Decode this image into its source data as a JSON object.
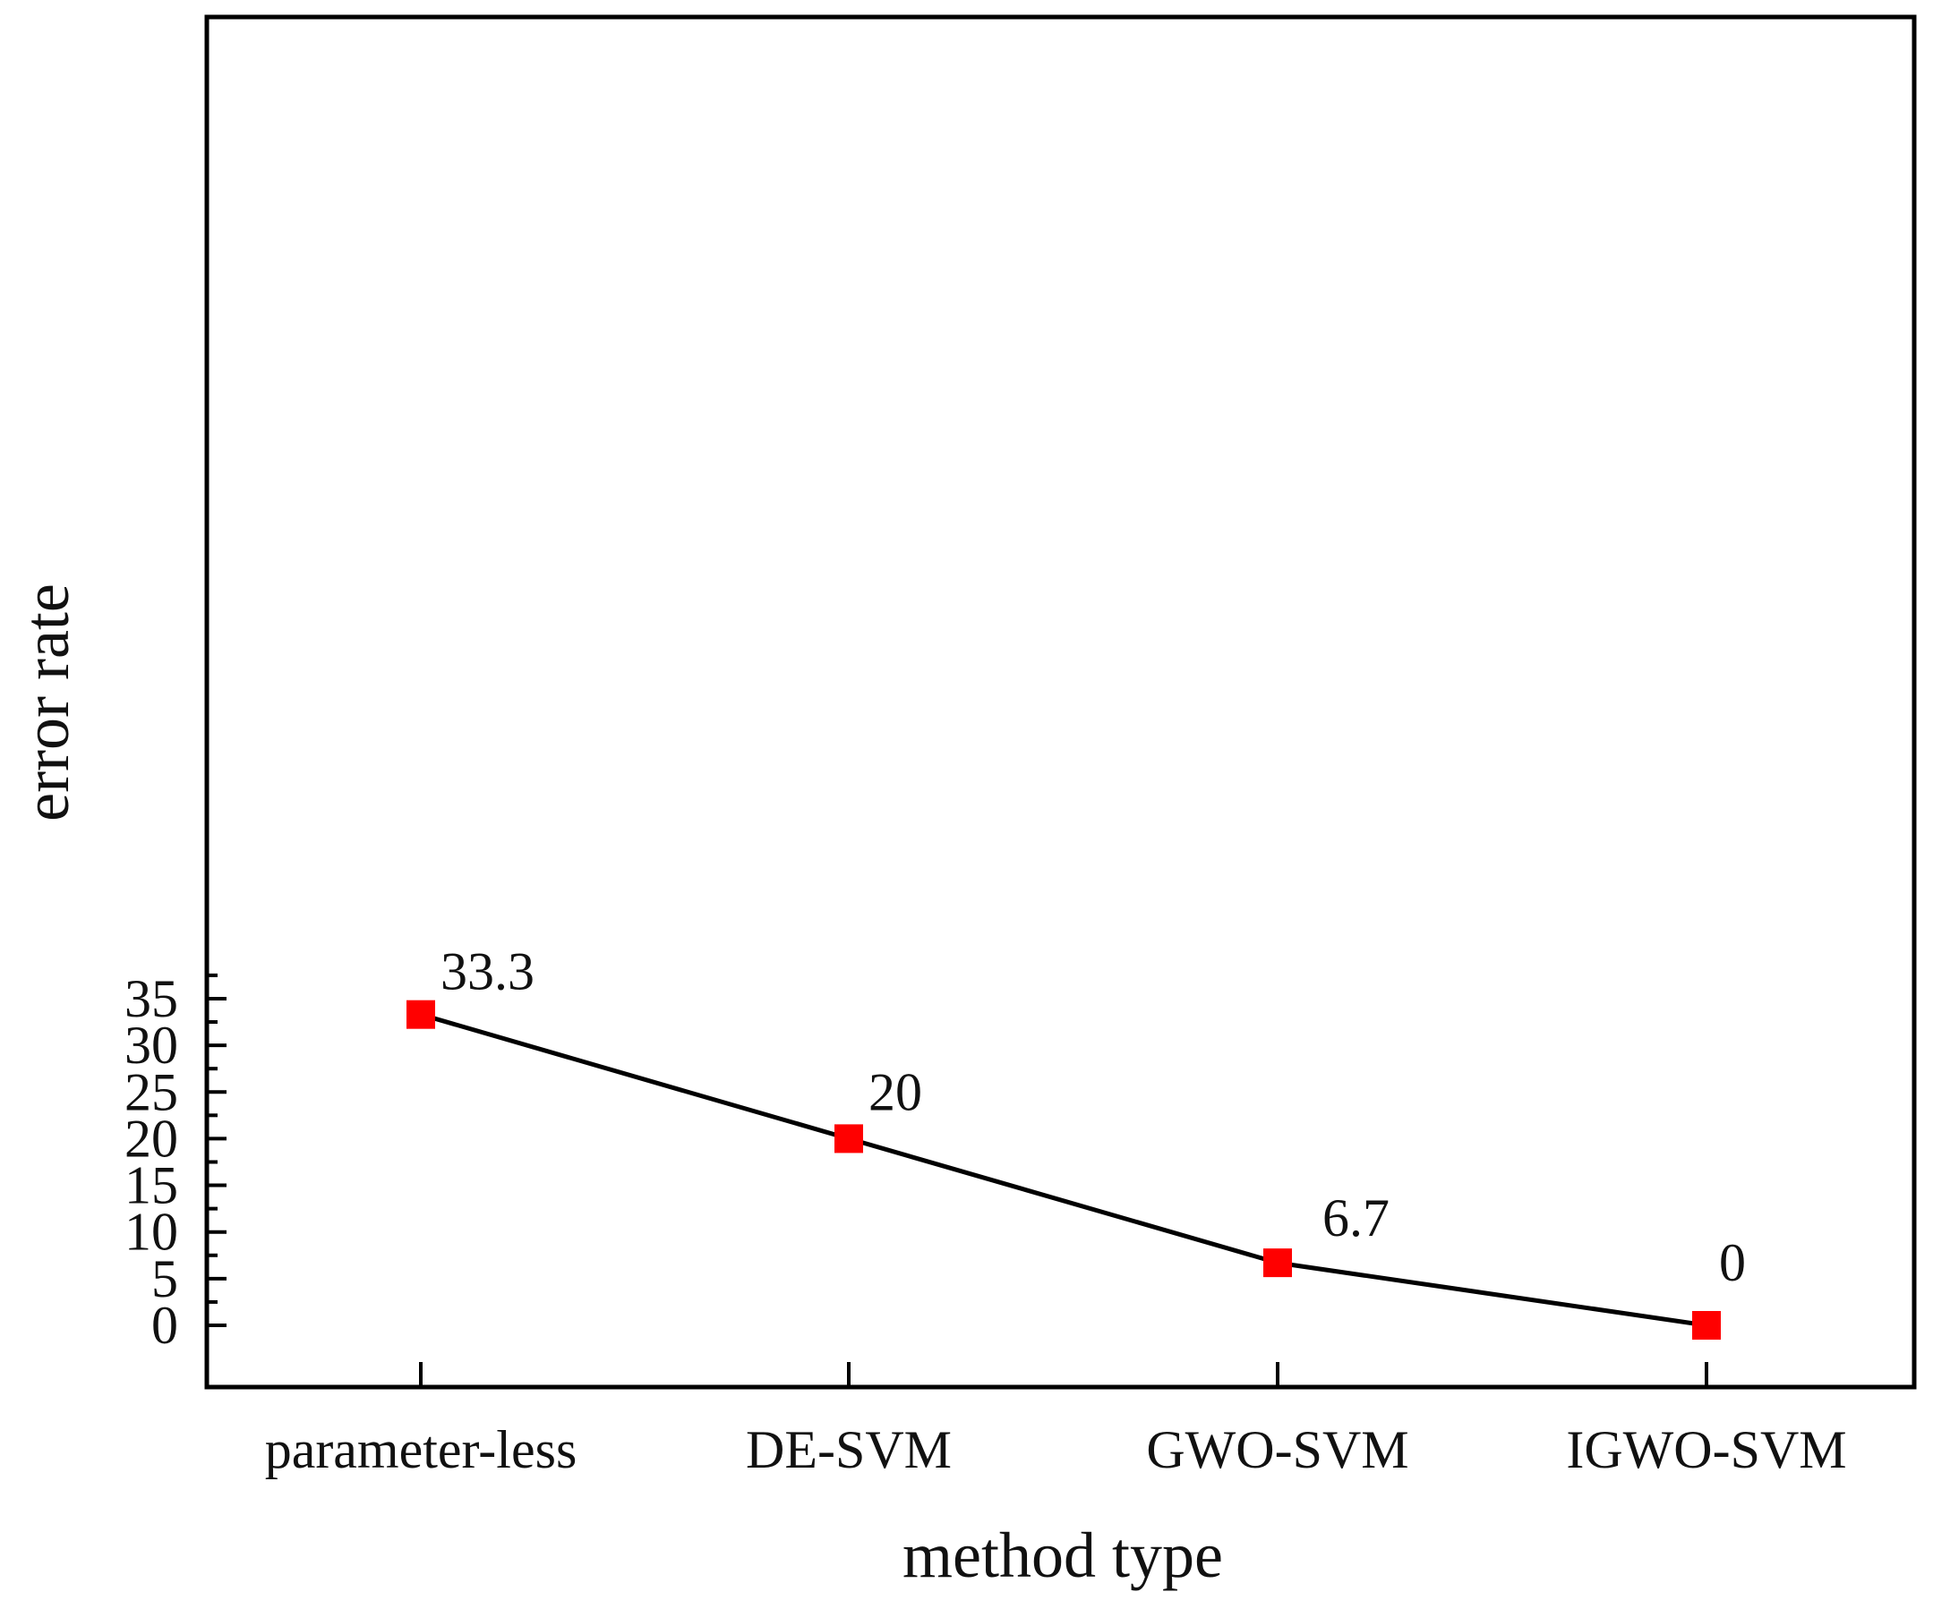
{
  "chart_data": {
    "type": "line",
    "title": "",
    "xlabel": "method type",
    "ylabel": "error rate",
    "categories": [
      "parameter-less",
      "DE-SVM",
      "GWO-SVM",
      "IGWO-SVM"
    ],
    "series": [
      {
        "name": "error rate",
        "values": [
          33.3,
          20,
          6.7,
          0
        ],
        "data_labels": [
          "33.3",
          "20",
          "6.7",
          "0"
        ],
        "line_color": "#000000",
        "marker": "square",
        "marker_color": "#ff0000"
      }
    ],
    "ylim": [
      -2,
      37
    ],
    "yticks": [
      0,
      5,
      10,
      15,
      20,
      25,
      30,
      35
    ],
    "ytick_labels": [
      "0",
      "5",
      "10",
      "15",
      "20",
      "25",
      "30",
      "35"
    ],
    "minor_yticks": true,
    "grid": false,
    "legend": "none"
  }
}
